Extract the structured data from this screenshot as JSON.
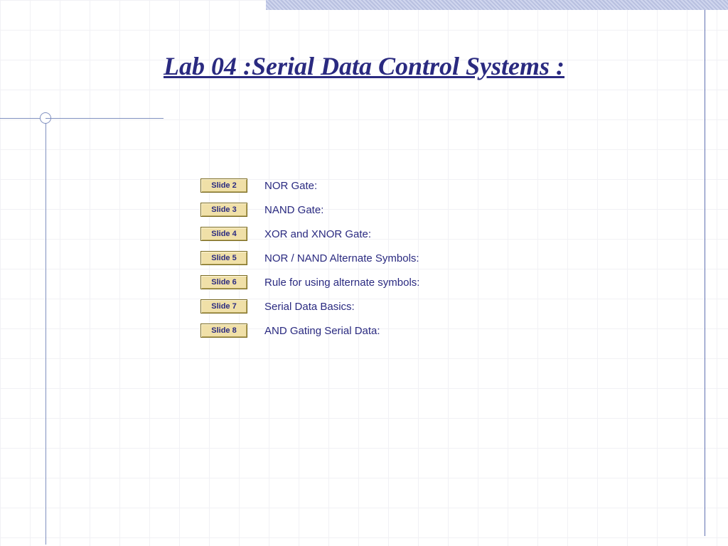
{
  "title": "Lab 04 :Serial Data Control Systems :",
  "colors": {
    "title_color": "#2a2a80",
    "text_color": "#2a2a80",
    "button_bg": "#f0e0a8",
    "button_border": "#7a6a20",
    "grid_line": "#e8e8f0",
    "accent_line": "#8090c0",
    "top_bar_a": "#b8c0e0",
    "top_bar_b": "#d0d6ee"
  },
  "typography": {
    "title_family": "Times New Roman",
    "title_size_pt": 27,
    "title_weight": "bold",
    "title_style": "italic underline",
    "body_family": "Verdana",
    "body_size_pt": 11,
    "button_size_pt": 8
  },
  "toc": [
    {
      "button": "Slide 2",
      "desc": "NOR Gate:"
    },
    {
      "button": "Slide 3",
      "desc": "NAND Gate:"
    },
    {
      "button": "Slide 4",
      "desc": "XOR and XNOR Gate:"
    },
    {
      "button": "Slide 5",
      "desc": "NOR / NAND Alternate Symbols:"
    },
    {
      "button": "Slide 6",
      "desc": "Rule for using alternate symbols:"
    },
    {
      "button": "Slide 7",
      "desc": "Serial Data Basics:"
    },
    {
      "button": "Slide 8",
      "desc": "AND Gating Serial Data:"
    }
  ]
}
